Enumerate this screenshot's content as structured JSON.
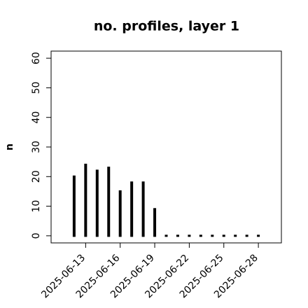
{
  "chart_data": {
    "type": "spike",
    "title": "no. profiles, layer 1",
    "y_label": "n",
    "x": [
      "2025-06-12",
      "2025-06-13",
      "2025-06-14",
      "2025-06-15",
      "2025-06-16",
      "2025-06-17",
      "2025-06-18",
      "2025-06-19",
      "2025-06-20",
      "2025-06-21",
      "2025-06-22",
      "2025-06-23",
      "2025-06-24",
      "2025-06-25",
      "2025-06-26",
      "2025-06-27",
      "2025-06-28"
    ],
    "values": [
      20,
      24,
      22,
      23,
      15,
      18,
      18,
      9,
      0,
      0,
      0,
      0,
      0,
      0,
      0,
      0,
      0
    ],
    "color": "#000000",
    "xlim": [
      "2025-06-10",
      "2025-06-30"
    ],
    "xticks": [
      "2025-06-13",
      "2025-06-16",
      "2025-06-19",
      "2025-06-22",
      "2025-06-25",
      "2025-06-28"
    ],
    "xtick_colors": [
      "#000000",
      "#000000",
      "#228b22",
      "#000000",
      "#000000",
      "#000000"
    ],
    "ylim": [
      -2.4,
      62.4
    ],
    "yticks": [
      0,
      10,
      20,
      30,
      40,
      50,
      60
    ]
  }
}
